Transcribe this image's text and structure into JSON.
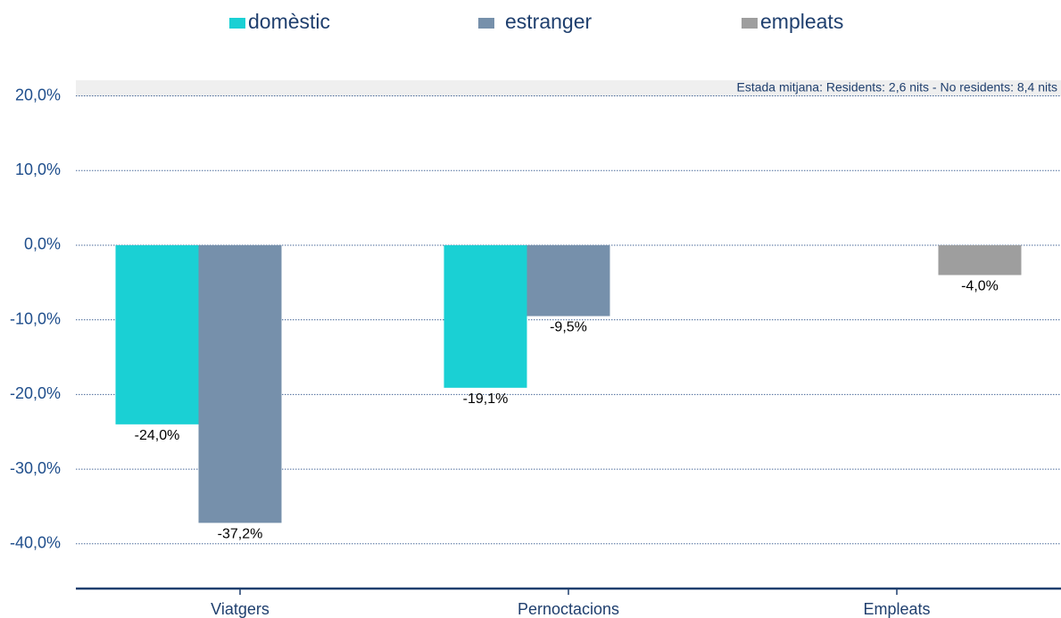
{
  "chart_data": {
    "type": "bar",
    "annotation": "Estada mitjana: Residents: 2,6 nits - No residents: 8,4 nits",
    "categories": [
      "Viatgers",
      "Pernoctacions",
      "Empleats"
    ],
    "series": [
      {
        "name": "domèstic",
        "color": "#1ad0d4",
        "values": [
          -24.0,
          -19.1,
          null
        ],
        "value_labels": [
          "-24,0%",
          "-19,1%",
          null
        ]
      },
      {
        "name": "estranger",
        "color": "#7690ab",
        "values": [
          -37.2,
          -9.5,
          null
        ],
        "value_labels": [
          "-37,2%",
          "-9,5%",
          null
        ]
      },
      {
        "name": "empleats",
        "color": "#9e9e9e",
        "values": [
          null,
          null,
          -4.0
        ],
        "value_labels": [
          null,
          null,
          "-4,0%"
        ]
      }
    ],
    "ylim": [
      -46,
      22
    ],
    "yticks": [
      {
        "value": 20,
        "label": "20,0%"
      },
      {
        "value": 10,
        "label": "10,0%"
      },
      {
        "value": 0,
        "label": "0,0%"
      },
      {
        "value": -10,
        "label": "-10,0%"
      },
      {
        "value": -20,
        "label": "-20,0%"
      },
      {
        "value": -30,
        "label": "-30,0%"
      },
      {
        "value": -40,
        "label": "-40,0%"
      }
    ],
    "grid": true,
    "legend": "top"
  }
}
